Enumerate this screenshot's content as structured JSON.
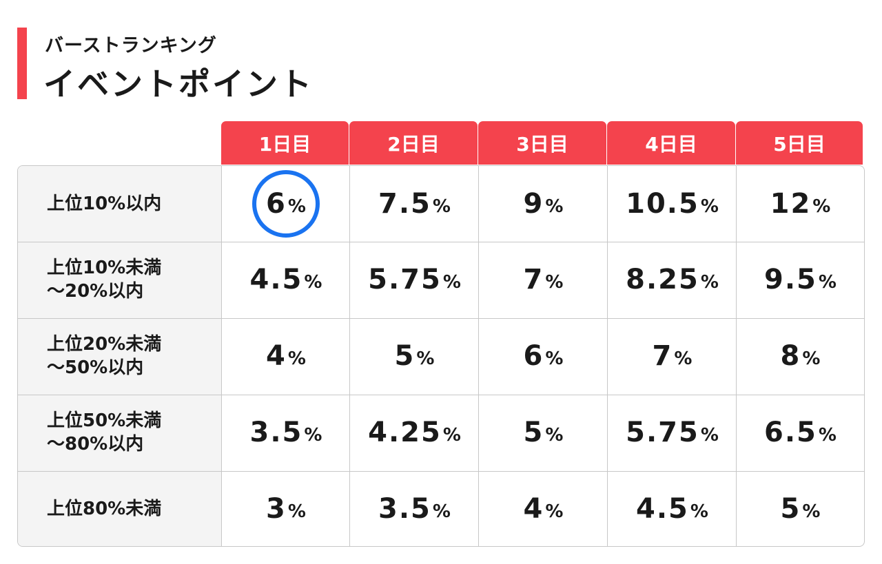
{
  "header": {
    "subtitle": "バーストランキング",
    "title": "イベントポイント"
  },
  "colors": {
    "accent": "#f4434d",
    "highlight": "#1a73f0"
  },
  "table": {
    "days": [
      "1日目",
      "2日目",
      "3日目",
      "4日目",
      "5日目"
    ],
    "percent_sign": "%",
    "rows": [
      {
        "label": [
          "上位10%以内"
        ],
        "values": [
          "6",
          "7.5",
          "9",
          "10.5",
          "12"
        ]
      },
      {
        "label": [
          "上位10%未満",
          "～20%以内"
        ],
        "values": [
          "4.5",
          "5.75",
          "7",
          "8.25",
          "9.5"
        ]
      },
      {
        "label": [
          "上位20%未満",
          "～50%以内"
        ],
        "values": [
          "4",
          "5",
          "6",
          "7",
          "8"
        ]
      },
      {
        "label": [
          "上位50%未満",
          "～80%以内"
        ],
        "values": [
          "3.5",
          "4.25",
          "5",
          "5.75",
          "6.5"
        ]
      },
      {
        "label": [
          "上位80%未満"
        ],
        "values": [
          "3",
          "3.5",
          "4",
          "4.5",
          "5"
        ]
      }
    ],
    "highlighted_cell": {
      "row": 0,
      "day": 0
    }
  }
}
